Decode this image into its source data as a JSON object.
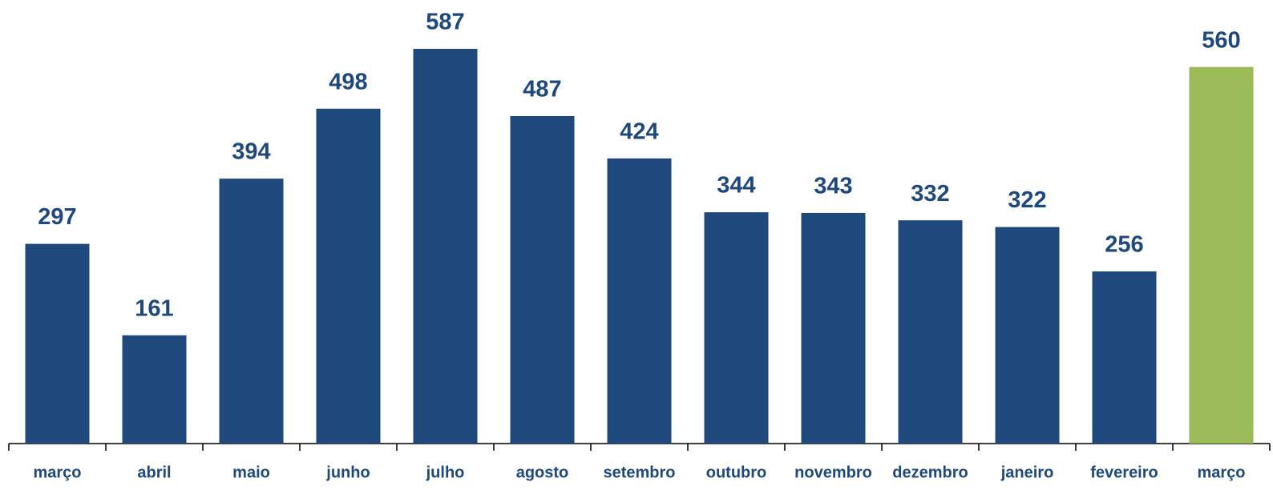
{
  "chart_data": {
    "type": "bar",
    "categories": [
      "março",
      "abril",
      "maio",
      "junho",
      "julho",
      "agosto",
      "setembro",
      "outubro",
      "novembro",
      "dezembro",
      "janeiro",
      "fevereiro",
      "março"
    ],
    "values": [
      297,
      161,
      394,
      498,
      587,
      487,
      424,
      344,
      343,
      332,
      322,
      256,
      560
    ],
    "colors": [
      "#1f497d",
      "#1f497d",
      "#1f497d",
      "#1f497d",
      "#1f497d",
      "#1f497d",
      "#1f497d",
      "#1f497d",
      "#1f497d",
      "#1f497d",
      "#1f497d",
      "#1f497d",
      "#9bbb59"
    ]
  }
}
